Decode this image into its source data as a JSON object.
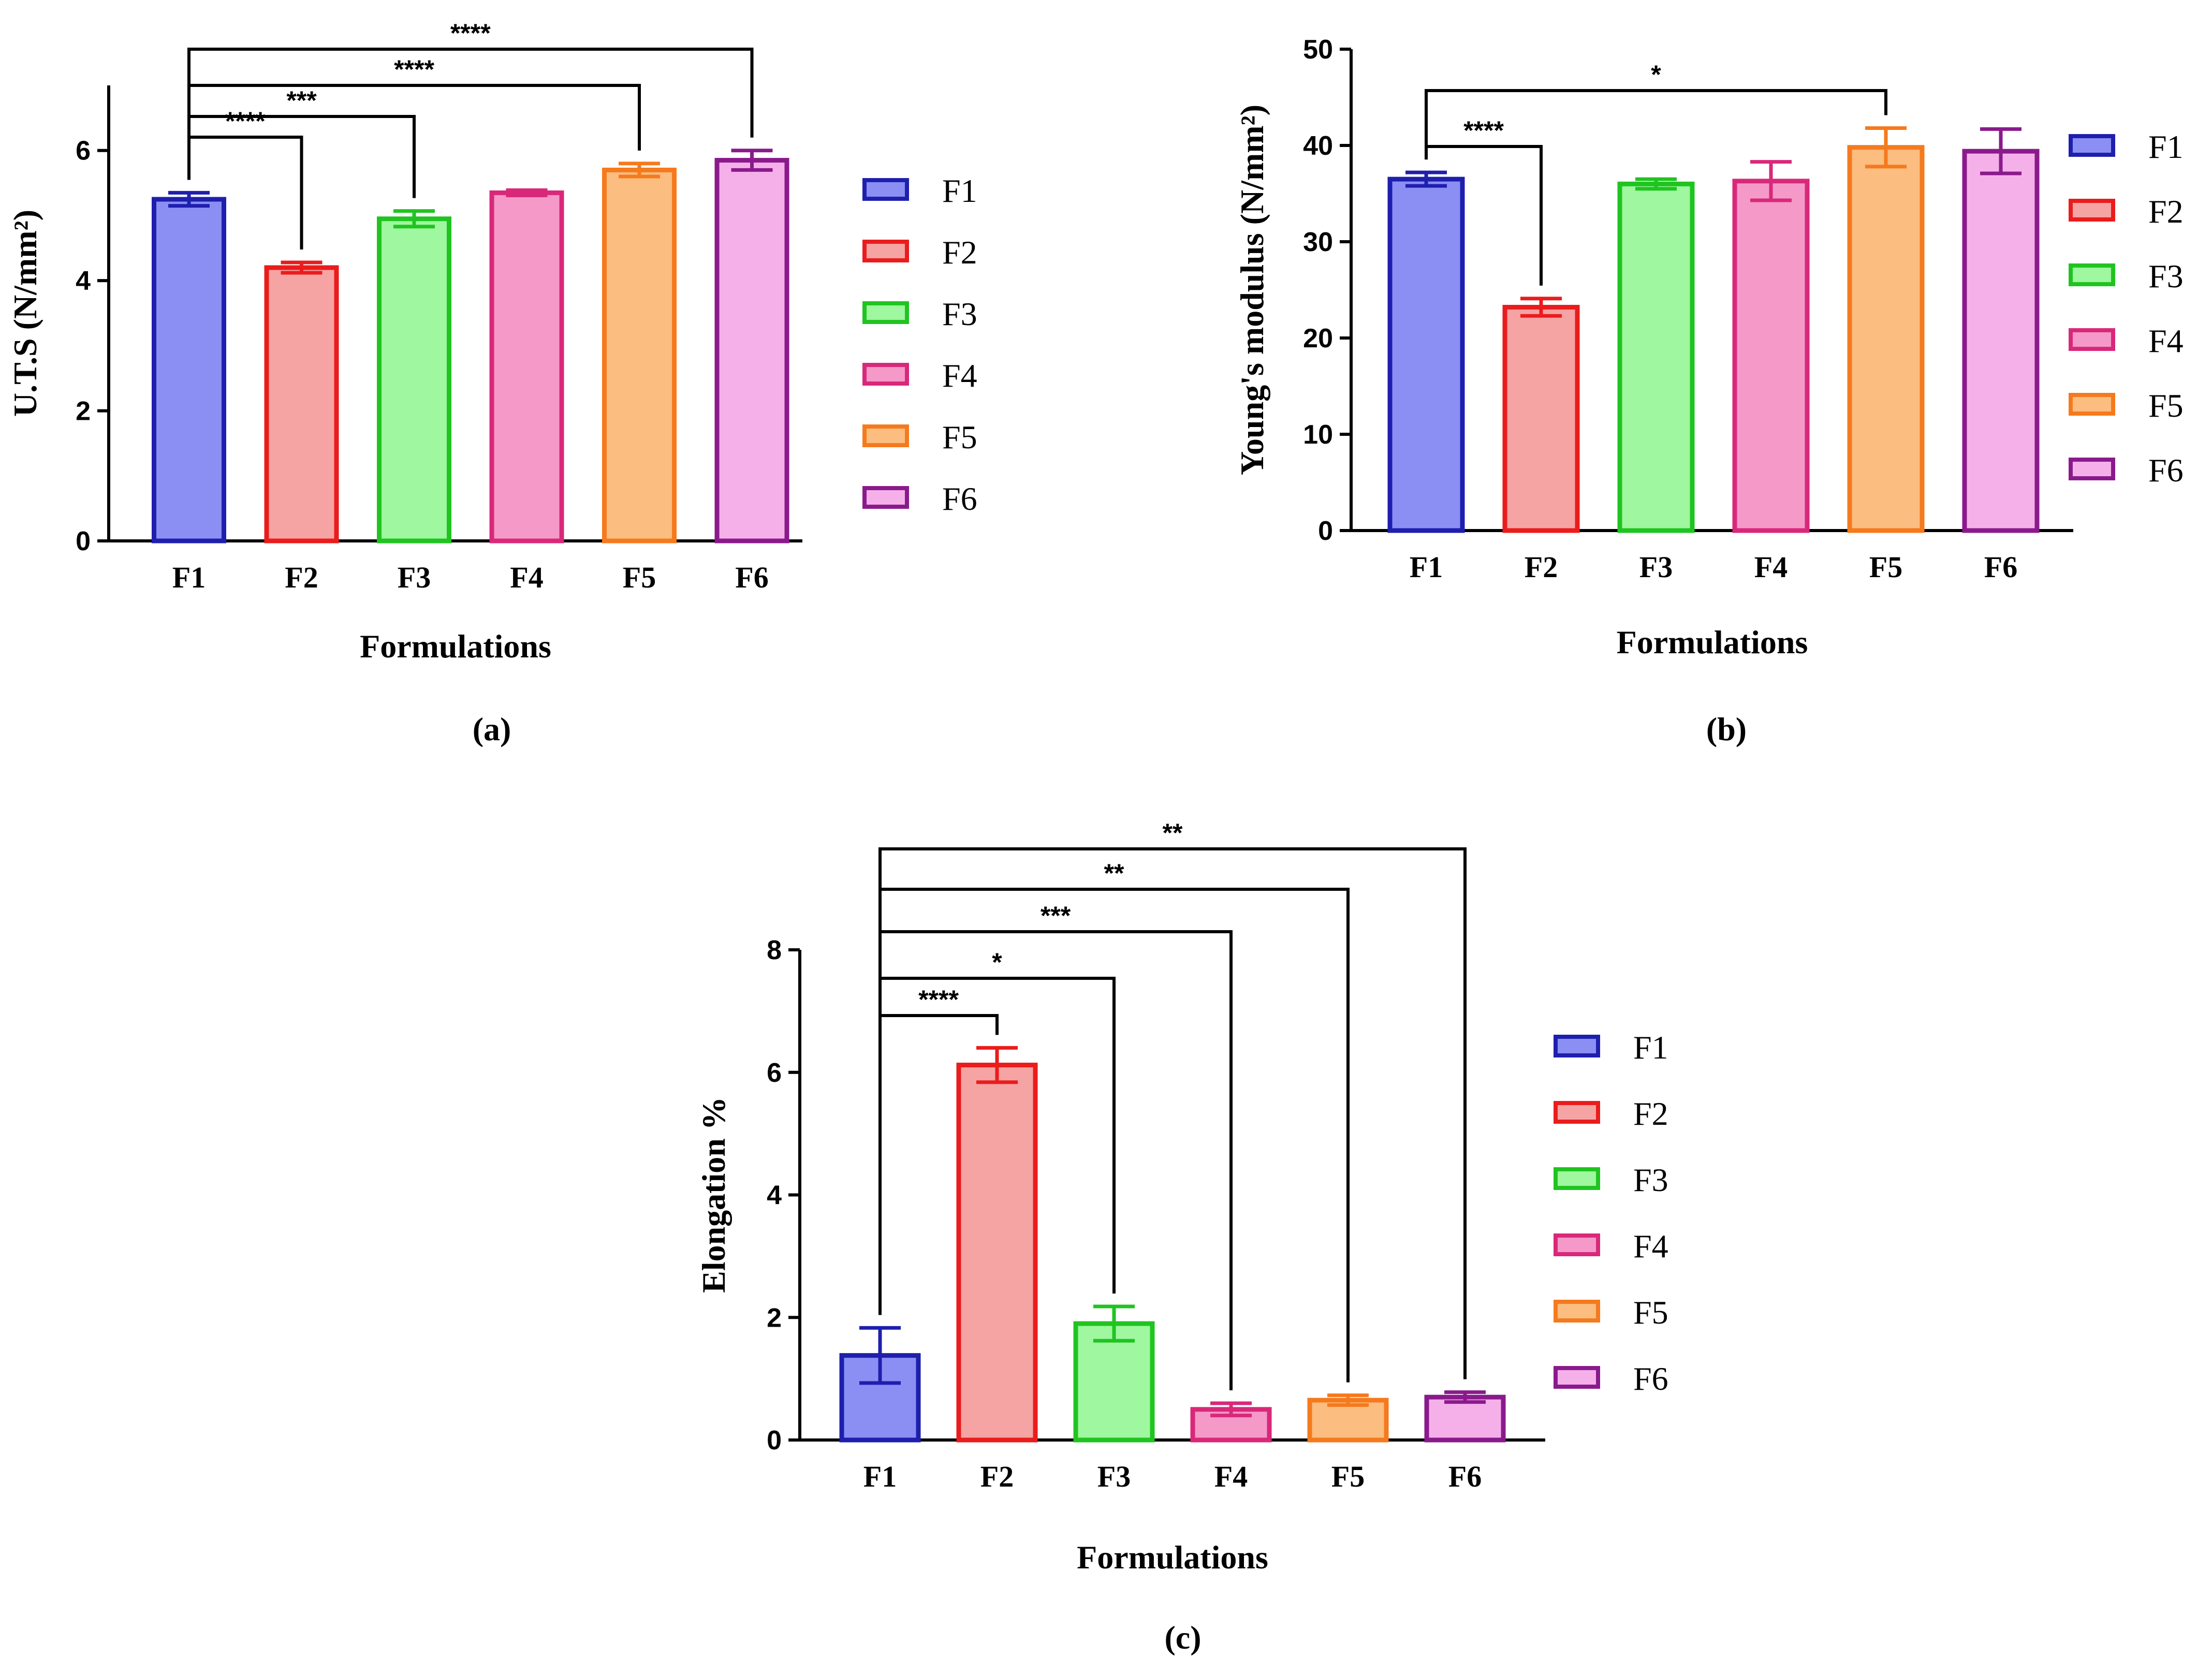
{
  "chart_data": [
    {
      "id": "a",
      "type": "bar",
      "panel_label": "(a)",
      "categories": [
        "F1",
        "F2",
        "F3",
        "F4",
        "F5",
        "F6"
      ],
      "values": [
        5.25,
        4.2,
        4.95,
        5.35,
        5.7,
        5.85
      ],
      "errors": [
        0.1,
        0.08,
        0.12,
        0.04,
        0.1,
        0.15
      ],
      "xlabel": "Formulations",
      "ylabel": "U.T.S (N/mm²)",
      "ylim": [
        0,
        7
      ],
      "yticks": [
        0,
        2,
        4,
        6
      ],
      "legend": [
        "F1",
        "F2",
        "F3",
        "F4",
        "F5",
        "F6"
      ],
      "significance": [
        {
          "from": "F1",
          "to": "F2",
          "label": "****"
        },
        {
          "from": "F1",
          "to": "F3",
          "label": "***"
        },
        {
          "from": "F1",
          "to": "F5",
          "label": "****"
        },
        {
          "from": "F1",
          "to": "F6",
          "label": "****"
        }
      ]
    },
    {
      "id": "b",
      "type": "bar",
      "panel_label": "(b)",
      "categories": [
        "F1",
        "F2",
        "F3",
        "F4",
        "F5",
        "F6"
      ],
      "values": [
        36.5,
        23.2,
        36.0,
        36.3,
        39.8,
        39.4
      ],
      "errors": [
        0.7,
        0.9,
        0.5,
        2.0,
        2.0,
        2.3
      ],
      "xlabel": "Formulations",
      "ylabel": "Young's modulus (N/mm²)",
      "ylim": [
        0,
        50
      ],
      "yticks": [
        0,
        10,
        20,
        30,
        40,
        50
      ],
      "legend": [
        "F1",
        "F2",
        "F3",
        "F4",
        "F5",
        "F6"
      ],
      "significance": [
        {
          "from": "F1",
          "to": "F2",
          "label": "****"
        },
        {
          "from": "F1",
          "to": "F5",
          "label": "*"
        }
      ]
    },
    {
      "id": "c",
      "type": "bar",
      "panel_label": "(c)",
      "categories": [
        "F1",
        "F2",
        "F3",
        "F4",
        "F5",
        "F6"
      ],
      "values": [
        1.38,
        6.12,
        1.9,
        0.5,
        0.65,
        0.7
      ],
      "errors": [
        0.45,
        0.28,
        0.28,
        0.1,
        0.08,
        0.08
      ],
      "xlabel": "Formulations",
      "ylabel": "Elongation %",
      "ylim": [
        0,
        8
      ],
      "yticks": [
        0,
        2,
        4,
        6,
        8
      ],
      "legend": [
        "F1",
        "F2",
        "F3",
        "F4",
        "F5",
        "F6"
      ],
      "significance": [
        {
          "from": "F1",
          "to": "F2",
          "label": "****"
        },
        {
          "from": "F1",
          "to": "F3",
          "label": "*"
        },
        {
          "from": "F1",
          "to": "F4",
          "label": "***"
        },
        {
          "from": "F1",
          "to": "F5",
          "label": "**"
        },
        {
          "from": "F1",
          "to": "F6",
          "label": "**"
        }
      ]
    }
  ],
  "series_colors": [
    {
      "name": "F1",
      "fill": "#8b8ff4",
      "stroke": "#1f1fae"
    },
    {
      "name": "F2",
      "fill": "#f6a3a3",
      "stroke": "#ea1c1c"
    },
    {
      "name": "F3",
      "fill": "#9ff79f",
      "stroke": "#20c420"
    },
    {
      "name": "F4",
      "fill": "#f59ac8",
      "stroke": "#d9287a"
    },
    {
      "name": "F5",
      "fill": "#fbbd80",
      "stroke": "#f57a1e"
    },
    {
      "name": "F6",
      "fill": "#f5b0ea",
      "stroke": "#8a1a8c"
    }
  ]
}
